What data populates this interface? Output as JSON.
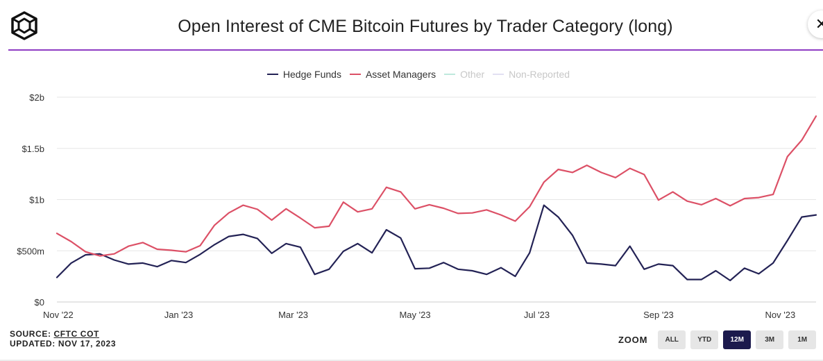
{
  "header": {
    "title": "Open Interest of CME Bitcoin Futures by Trader Category (long)",
    "close_label": "✕"
  },
  "chart_data": {
    "type": "line",
    "title": "Open Interest of CME Bitcoin Futures by Trader Category (long)",
    "xlabel": "",
    "ylabel": "",
    "ylim": [
      0,
      2000000000
    ],
    "yticks": [
      {
        "value": 0,
        "label": "$0"
      },
      {
        "value": 500000000,
        "label": "$500m"
      },
      {
        "value": 1000000000,
        "label": "$1b"
      },
      {
        "value": 1500000000,
        "label": "$1.5b"
      },
      {
        "value": 2000000000,
        "label": "$2b"
      }
    ],
    "xticks": [
      {
        "index": 0,
        "label": "Nov '22"
      },
      {
        "index": 8.5,
        "label": "Jan '23"
      },
      {
        "index": 16.5,
        "label": "Mar '23"
      },
      {
        "index": 25,
        "label": "May '23"
      },
      {
        "index": 33.5,
        "label": "Jul '23"
      },
      {
        "index": 42,
        "label": "Sep '23"
      },
      {
        "index": 50.5,
        "label": "Nov '23"
      }
    ],
    "grid": true,
    "legend_position": "top-center",
    "series": [
      {
        "name": "Hedge Funds",
        "color": "#232255",
        "visible": true,
        "values": [
          240,
          380,
          460,
          470,
          410,
          370,
          380,
          345,
          405,
          385,
          465,
          560,
          640,
          660,
          620,
          475,
          570,
          535,
          270,
          320,
          495,
          570,
          480,
          705,
          625,
          325,
          330,
          385,
          320,
          305,
          270,
          335,
          250,
          480,
          945,
          830,
          650,
          380,
          370,
          355,
          545,
          320,
          370,
          355,
          220,
          220,
          305,
          210,
          330,
          275,
          380,
          600,
          830,
          850
        ]
      },
      {
        "name": "Asset Managers",
        "color": "#dc5066",
        "visible": true,
        "values": [
          670,
          590,
          490,
          450,
          470,
          545,
          580,
          515,
          505,
          490,
          550,
          750,
          870,
          945,
          905,
          800,
          910,
          820,
          725,
          740,
          975,
          880,
          910,
          1120,
          1075,
          910,
          950,
          915,
          865,
          870,
          900,
          850,
          790,
          930,
          1170,
          1295,
          1265,
          1335,
          1265,
          1215,
          1305,
          1245,
          995,
          1075,
          985,
          950,
          1010,
          940,
          1010,
          1020,
          1050,
          1420,
          1580,
          1815
        ]
      },
      {
        "name": "Other",
        "color": "#43c7a8",
        "visible": false,
        "values": []
      },
      {
        "name": "Non-Reported",
        "color": "#b9b5e6",
        "visible": false,
        "values": []
      }
    ]
  },
  "footer": {
    "source_prefix": "SOURCE: ",
    "source_link": "CFTC COT",
    "updated": "UPDATED: NOV 17, 2023"
  },
  "zoom": {
    "label": "ZOOM",
    "buttons": [
      {
        "label": "ALL",
        "active": false
      },
      {
        "label": "YTD",
        "active": false
      },
      {
        "label": "12M",
        "active": true
      },
      {
        "label": "3M",
        "active": false
      },
      {
        "label": "1M",
        "active": false
      }
    ]
  }
}
